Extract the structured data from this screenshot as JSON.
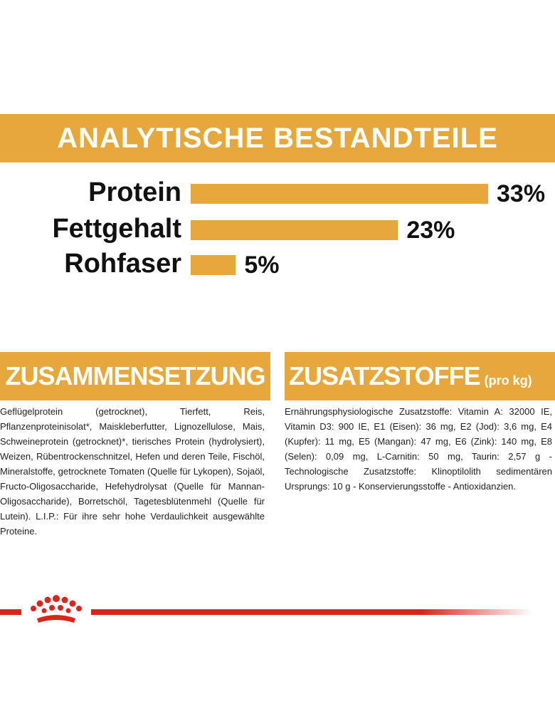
{
  "chart_data": {
    "type": "hbar",
    "title": "ANALYTISCHE BESTANDTEILE",
    "categories": [
      "Protein",
      "Fettgehalt",
      "Rohfaser"
    ],
    "values": [
      33,
      23,
      5
    ],
    "value_labels": [
      "33%",
      "23%",
      "5%"
    ],
    "color": "#e6a83c",
    "xlim": [
      0,
      33
    ]
  },
  "composition": {
    "title": "ZUSAMMENSETZUNG",
    "text": "Geflügelprotein (getrocknet), Tierfett, Reis, Pflanzenproteinisolat*, Maiskleberfutter, Lignozellulose, Mais, Schweineprotein (getrocknet)*, tierisches Protein (hydrolysiert), Weizen, Rübentrockenschnitzel, Hefen und deren Teile, Fischöl, Mineralstoffe, getrocknete Tomaten (Quelle für Lykopen), Sojaöl, Fructo-Oligosaccharide, Hefehydrolysat (Quelle für Mannan-Oligosaccharide), Borretschöl, Tagetesblütenmehl (Quelle für Lutein). L.I.P.: Für ihre sehr hohe Verdaulichkeit ausgewählte Proteine."
  },
  "additives": {
    "title": "ZUSATZSTOFFE",
    "unit": "(pro kg)",
    "text": "Ernährungsphysiologische Zusatzstoffe: Vitamin A: 32000 IE, Vitamin D3: 900 IE, E1 (Eisen): 36 mg, E2 (Jod): 3,6 mg, E4 (Kupfer): 11 mg, E5 (Mangan): 47 mg, E6 (Zink): 140 mg, E8 (Selen): 0,09 mg, L-Carnitin: 50 mg, Taurin: 2,57 g - Technologische Zusatzstoffe: Klinoptilolith sedimentären Ursprungs: 10 g - Konservierungsstoffe - Antioxidanzien."
  }
}
